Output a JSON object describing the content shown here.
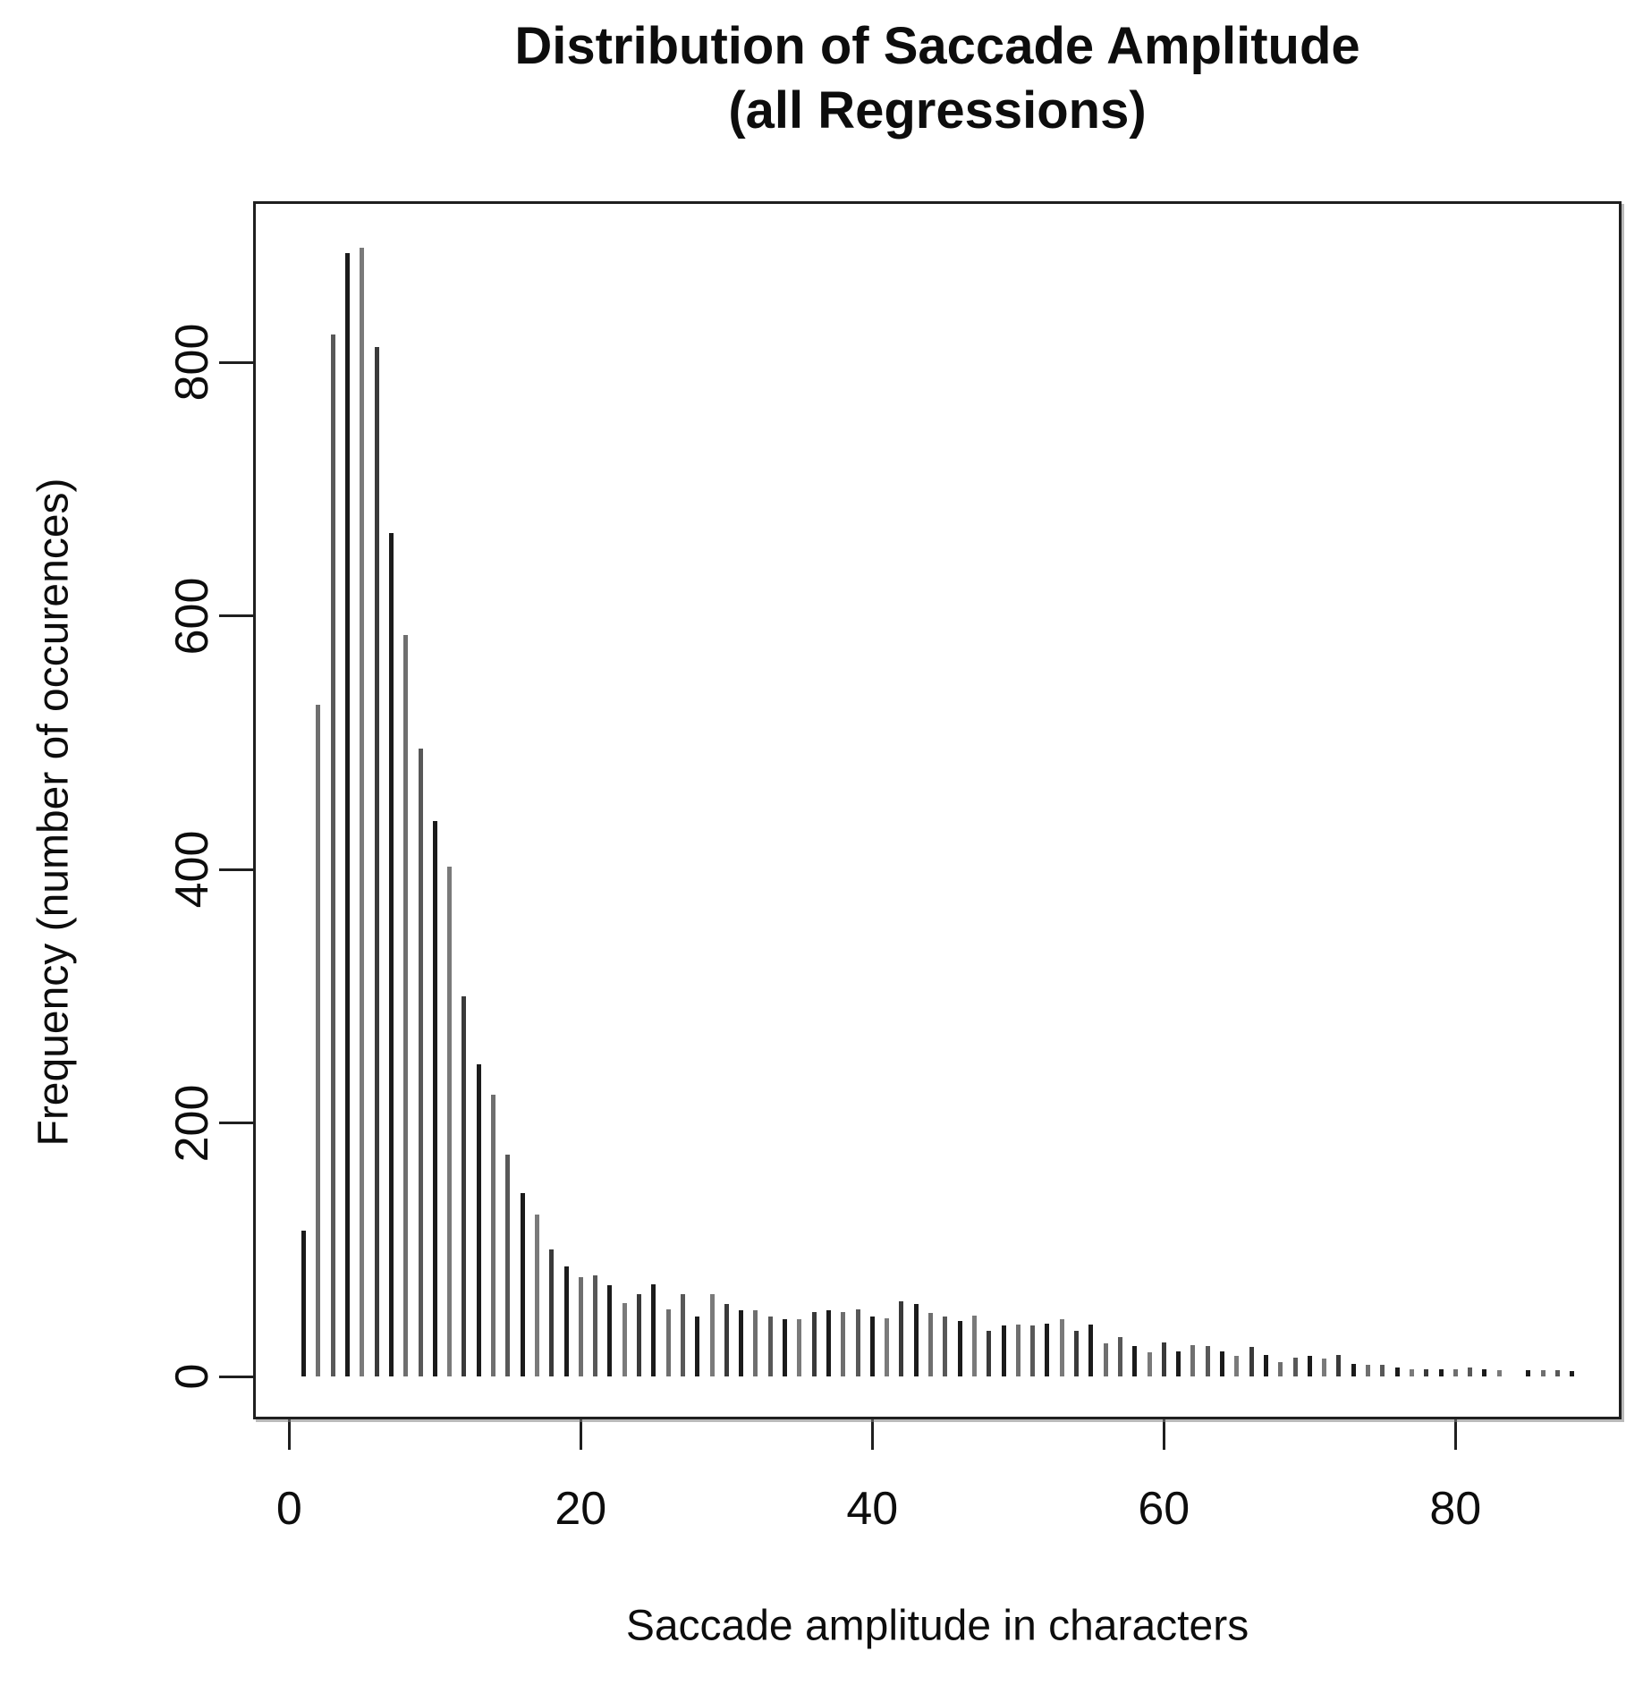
{
  "page": {
    "background": "#ffffff",
    "text_color": "#0d0d0d",
    "axis_color": "#1f1f1f"
  },
  "title": {
    "line1": "Distribution of Saccade Amplitude",
    "line2": "(all Regressions)"
  },
  "chart_data": {
    "type": "bar",
    "subtype": "histogram-spikes",
    "title": "Distribution of Saccade Amplitude (all Regressions)",
    "xlabel": "Saccade amplitude in characters",
    "ylabel": "Frequency (number of occurences)",
    "xlim": [
      0,
      90
    ],
    "ylim": [
      0,
      890
    ],
    "x_ticks": [
      0,
      20,
      40,
      60,
      80
    ],
    "y_ticks": [
      0,
      200,
      400,
      600,
      800
    ],
    "grid": false,
    "legend": false,
    "x": [
      1,
      2,
      3,
      4,
      5,
      6,
      7,
      8,
      9,
      10,
      11,
      12,
      13,
      14,
      15,
      16,
      17,
      18,
      19,
      20,
      21,
      22,
      23,
      24,
      25,
      26,
      27,
      28,
      29,
      30,
      31,
      32,
      33,
      34,
      35,
      36,
      37,
      38,
      39,
      40,
      41,
      42,
      43,
      44,
      45,
      46,
      47,
      48,
      49,
      50,
      51,
      52,
      53,
      54,
      55,
      56,
      57,
      58,
      59,
      60,
      61,
      62,
      63,
      64,
      65,
      66,
      67,
      68,
      69,
      70,
      71,
      72,
      73,
      74,
      75,
      76,
      77,
      78,
      79,
      80,
      81,
      82,
      83,
      84,
      85,
      86,
      87,
      88
    ],
    "values": [
      115,
      530,
      822,
      886,
      890,
      812,
      665,
      585,
      495,
      438,
      402,
      300,
      246,
      222,
      175,
      145,
      128,
      100,
      87,
      78,
      80,
      72,
      58,
      65,
      73,
      53,
      65,
      47,
      65,
      57,
      52,
      52,
      47,
      45,
      45,
      51,
      52,
      51,
      53,
      47,
      46,
      59,
      57,
      50,
      47,
      44,
      48,
      36,
      40,
      41,
      40,
      42,
      45,
      36,
      41,
      26,
      31,
      24,
      19,
      27,
      20,
      25,
      24,
      20,
      16,
      23,
      17,
      11,
      15,
      16,
      14,
      17,
      10,
      9,
      9,
      7,
      6,
      6,
      6,
      6,
      7,
      6,
      5,
      0,
      5,
      5,
      5,
      4
    ]
  },
  "style": {
    "bar_colors": [
      "#1b1b1b",
      "#6f6f6f",
      "#585858",
      "#1b1b1b",
      "#7a7a7a",
      "#3a3a3a"
    ]
  }
}
